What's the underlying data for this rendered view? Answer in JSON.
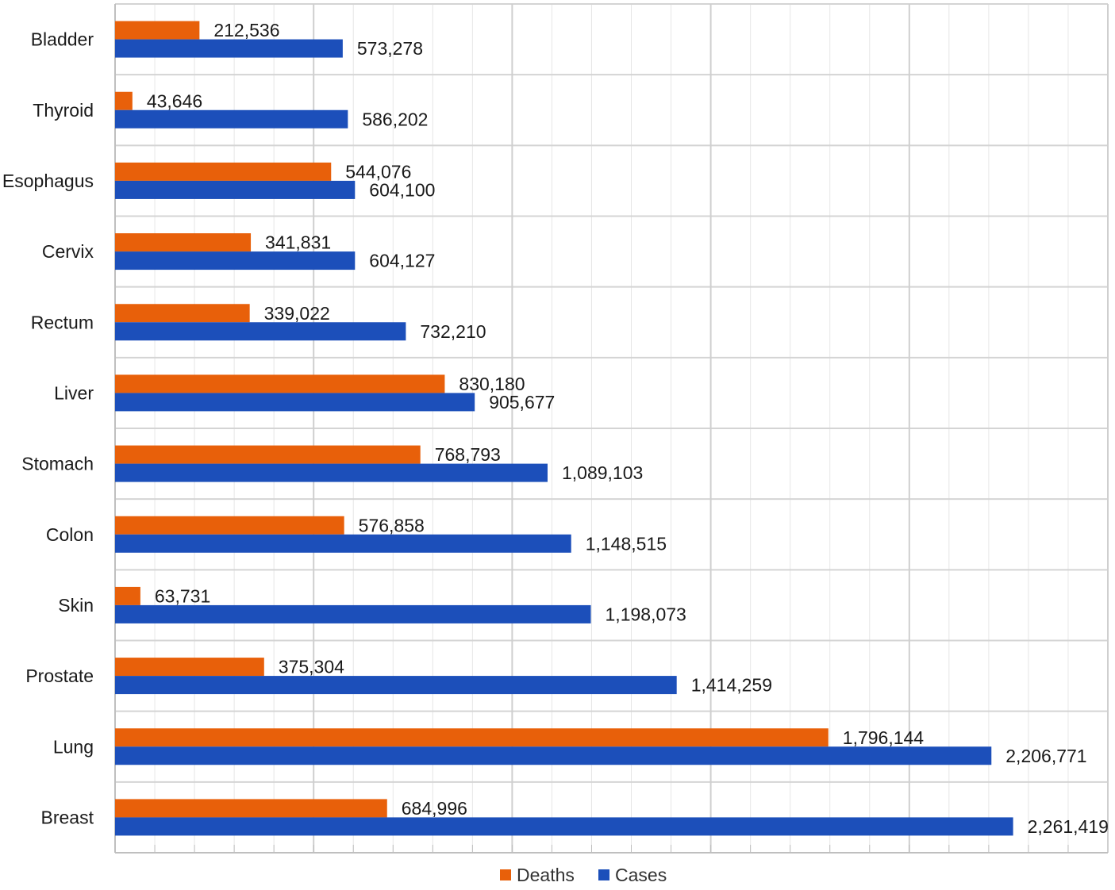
{
  "chart_data": {
    "type": "bar",
    "orientation": "horizontal",
    "categories": [
      "Bladder",
      "Thyroid",
      "Esophagus",
      "Cervix",
      "Rectum",
      "Liver",
      "Stomach",
      "Colon",
      "Skin",
      "Prostate",
      "Lung",
      "Breast"
    ],
    "series": [
      {
        "name": "Deaths",
        "color": "#e8600a",
        "values": [
          212536,
          43646,
          544076,
          341831,
          339022,
          830180,
          768793,
          576858,
          63731,
          375304,
          1796144,
          684996
        ],
        "labels": [
          "212,536",
          "43,646",
          "544,076",
          "341,831",
          "339,022",
          "830,180",
          "768,793",
          "576,858",
          "63,731",
          "375,304",
          "1,796,144",
          "684,996"
        ]
      },
      {
        "name": "Cases",
        "color": "#1c4fba",
        "values": [
          573278,
          586202,
          604100,
          604127,
          732210,
          905677,
          1089103,
          1148515,
          1198073,
          1414259,
          2206771,
          2261419
        ],
        "labels": [
          "573,278",
          "586,202",
          "604,100",
          "604,127",
          "732,210",
          "905,677",
          "1,089,103",
          "1,148,515",
          "1,198,073",
          "1,414,259",
          "2,206,771",
          "2,261,419"
        ]
      }
    ],
    "xlim": [
      0,
      2500000
    ],
    "grid": true,
    "legend": "bottom",
    "title": "",
    "xlabel": "",
    "ylabel": ""
  }
}
